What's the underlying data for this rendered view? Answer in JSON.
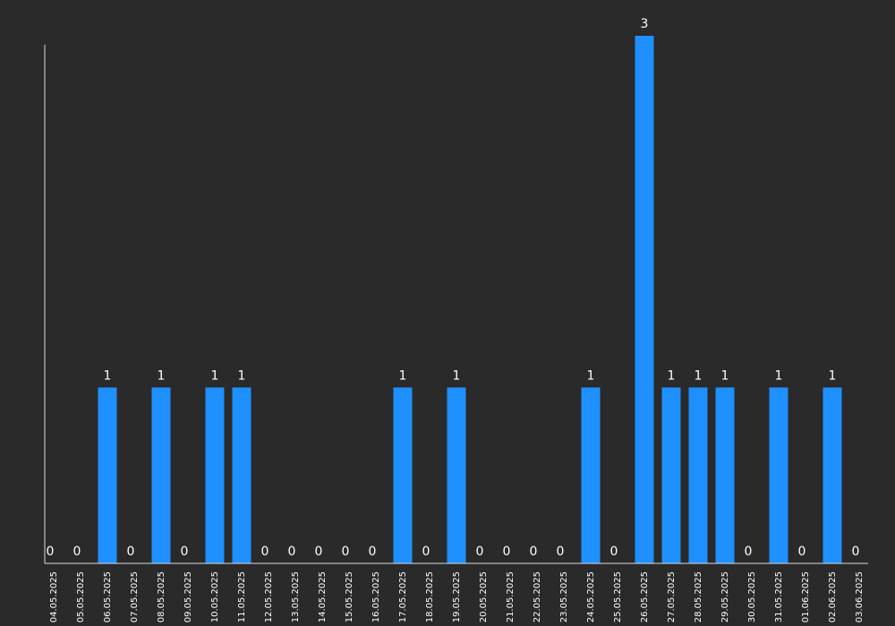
{
  "chart_data": {
    "type": "bar",
    "categories": [
      "04.05.2025",
      "05.05.2025",
      "06.05.2025",
      "07.05.2025",
      "08.05.2025",
      "09.05.2025",
      "10.05.2025",
      "11.05.2025",
      "12.05.2025",
      "13.05.2025",
      "14.05.2025",
      "15.05.2025",
      "16.05.2025",
      "17.05.2025",
      "18.05.2025",
      "19.05.2025",
      "20.05.2025",
      "21.05.2025",
      "22.05.2025",
      "23.05.2025",
      "24.05.2025",
      "25.05.2025",
      "26.05.2025",
      "27.05.2025",
      "28.05.2025",
      "29.05.2025",
      "30.05.2025",
      "31.05.2025",
      "01.06.2025",
      "02.06.2025",
      "03.06.2025"
    ],
    "values": [
      0,
      0,
      1,
      0,
      1,
      0,
      1,
      1,
      0,
      0,
      0,
      0,
      0,
      1,
      0,
      1,
      0,
      0,
      0,
      0,
      1,
      0,
      3,
      1,
      1,
      1,
      0,
      1,
      0,
      1,
      0
    ],
    "title": "",
    "xlabel": "",
    "ylabel": "",
    "ylim": [
      0,
      3
    ],
    "grid": false,
    "data_labels": true,
    "tick_label_rotation": "vertical",
    "colors": {
      "background": "#2a2a2a",
      "bar": "#1e90ff",
      "axis": "#dcdcdc",
      "text": "#ffffff"
    }
  }
}
